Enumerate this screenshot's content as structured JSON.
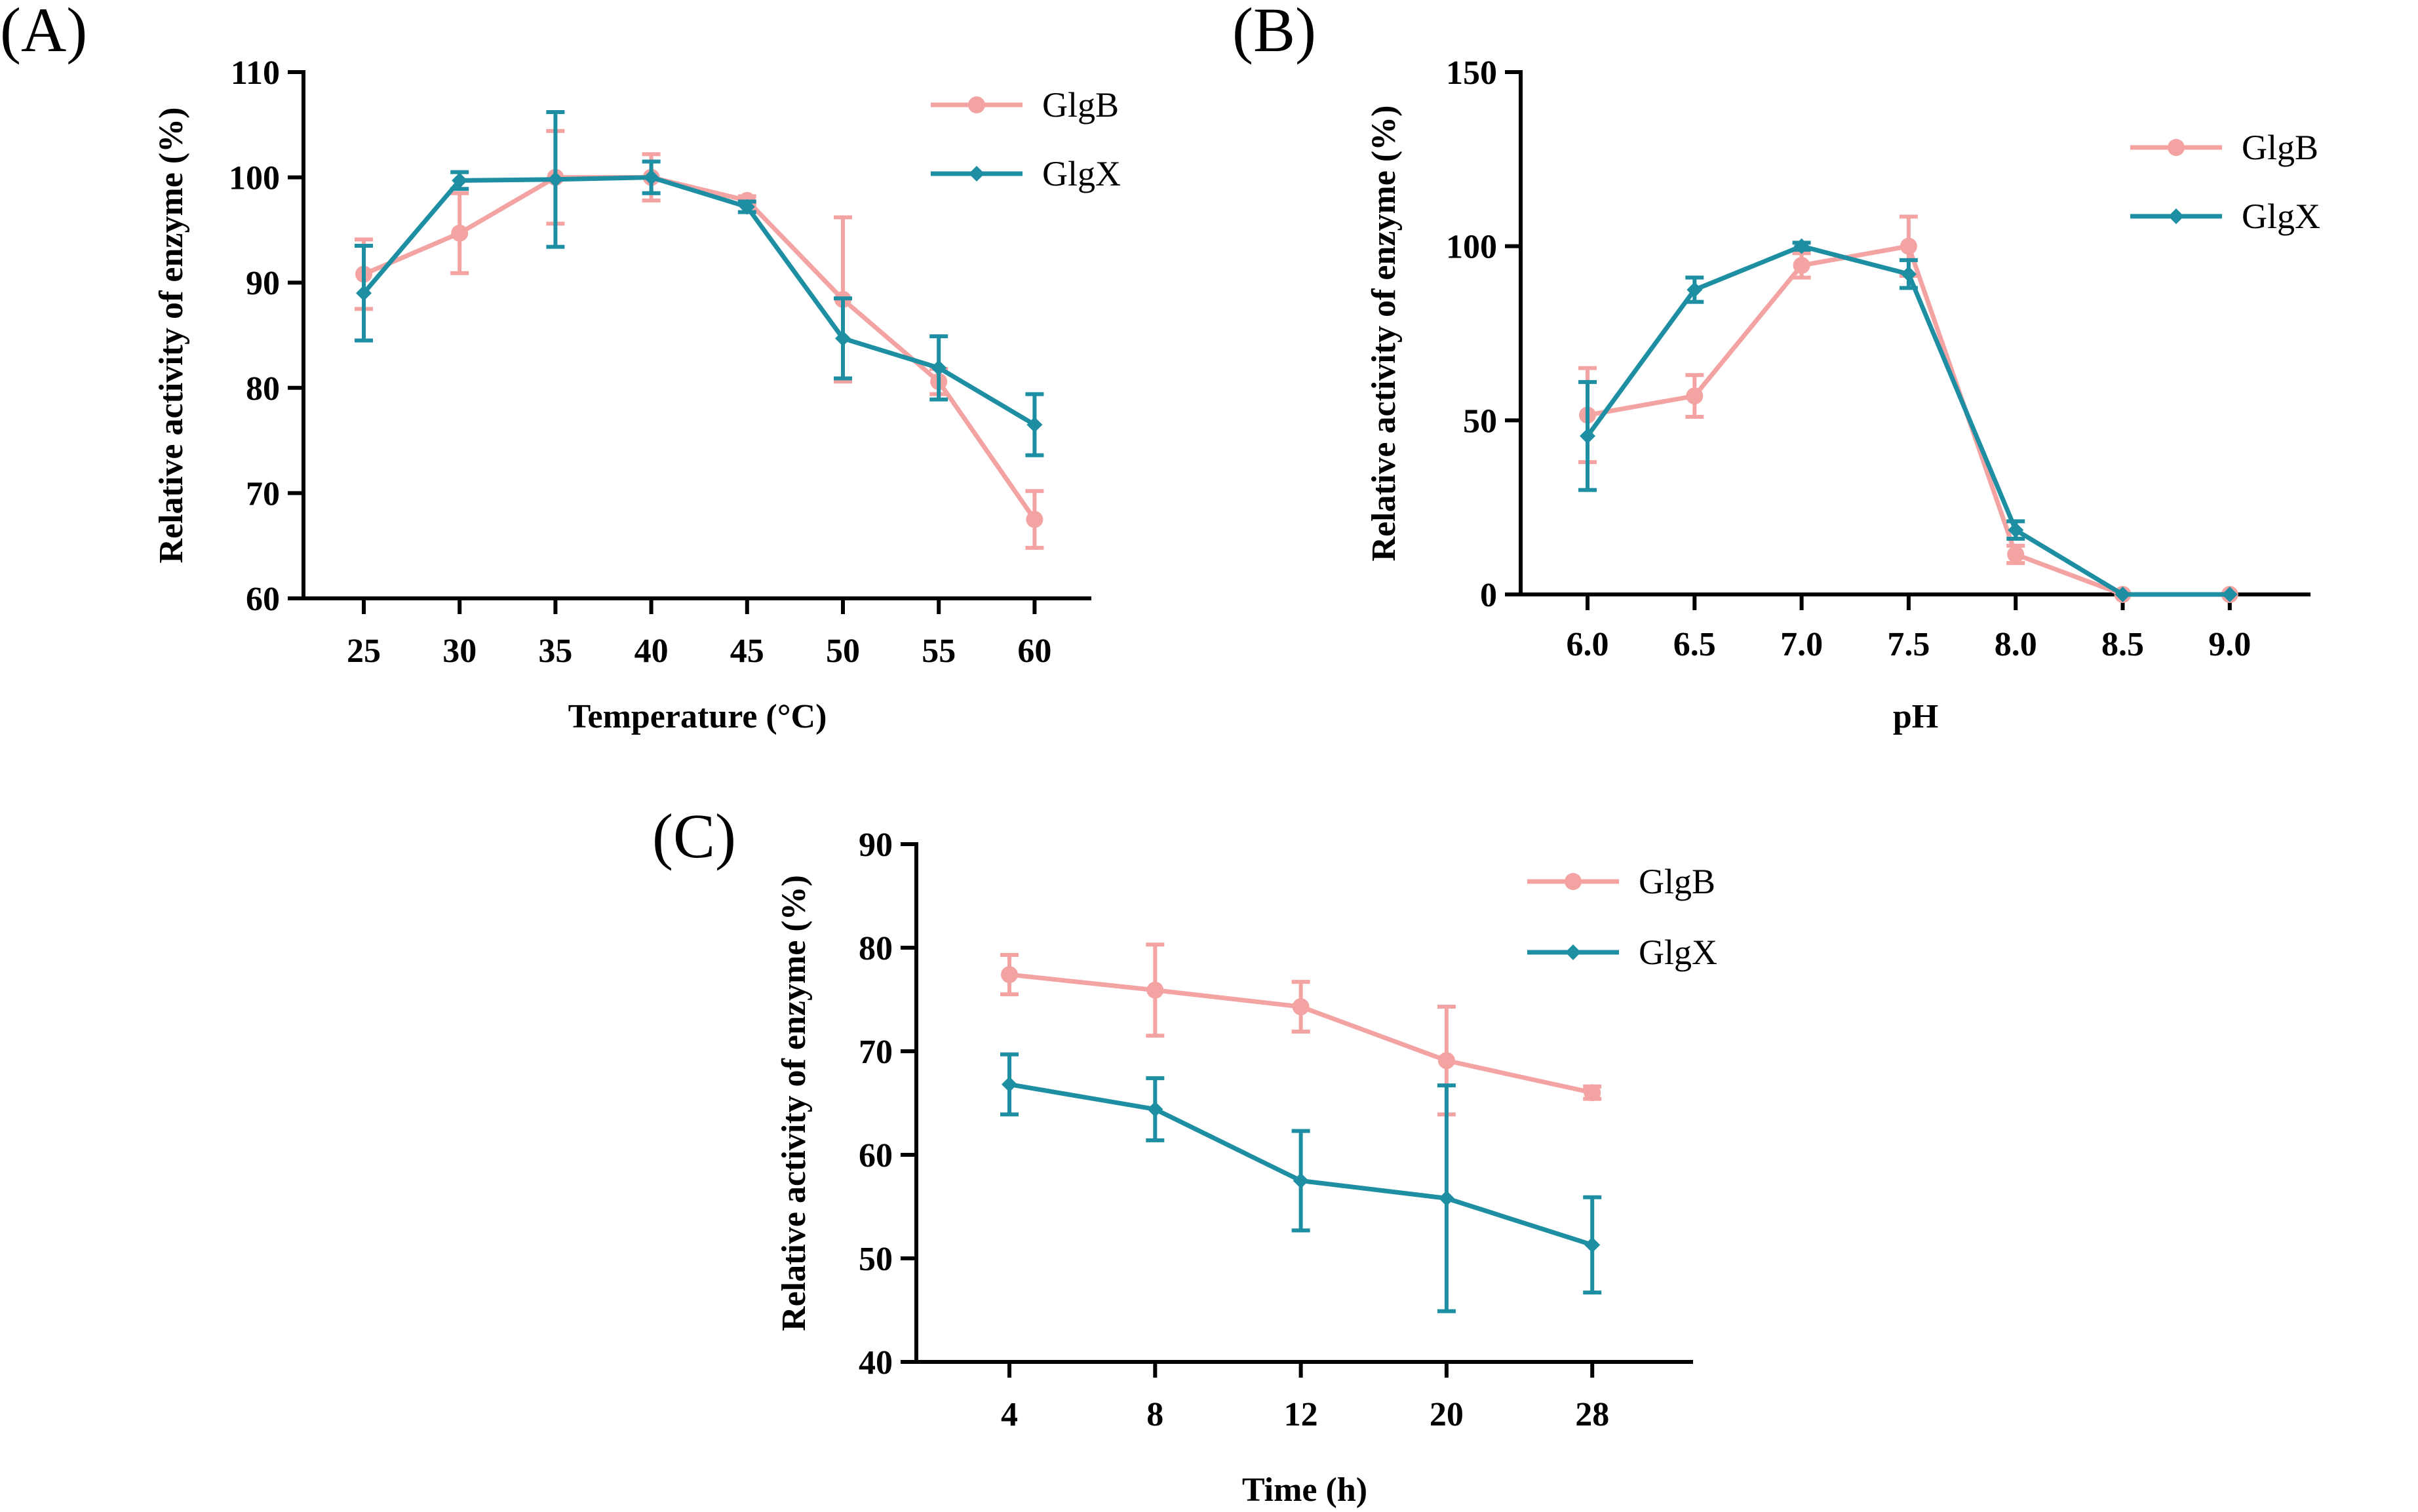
{
  "chart_data": [
    {
      "panel": "(A)",
      "type": "line",
      "xlabel": "Temperature (°C)",
      "ylabel": "Relative activity of enzyme (%)",
      "ylim": [
        60,
        110
      ],
      "yticks": [
        60,
        70,
        80,
        90,
        100,
        110
      ],
      "categories": [
        "25",
        "30",
        "35",
        "40",
        "45",
        "50",
        "55",
        "60"
      ],
      "legend_position": "top-right",
      "series": [
        {
          "name": "GlgB",
          "color": "#F4A3A3",
          "marker": "circle",
          "values": [
            90.8,
            94.7,
            100,
            100,
            97.8,
            88.4,
            80.6,
            67.5
          ],
          "errors": [
            3.3,
            3.8,
            4.4,
            2.2,
            0.4,
            7.8,
            1.2,
            2.7
          ]
        },
        {
          "name": "GlgX",
          "color": "#1E8FA3",
          "marker": "diamond",
          "values": [
            89.0,
            99.7,
            99.8,
            100,
            97.2,
            84.7,
            81.9,
            76.5
          ],
          "errors": [
            4.5,
            0.8,
            6.4,
            1.5,
            0.5,
            3.8,
            3.0,
            2.9
          ]
        }
      ]
    },
    {
      "panel": "(B)",
      "type": "line",
      "xlabel": "pH",
      "ylabel": "Relative activity of enzyme (%)",
      "ylim": [
        0,
        150
      ],
      "yticks": [
        0,
        50,
        100,
        150
      ],
      "categories": [
        "6.0",
        "6.5",
        "7.0",
        "7.5",
        "8.0",
        "8.5",
        "9.0"
      ],
      "legend_position": "top-right",
      "series": [
        {
          "name": "GlgB",
          "color": "#F4A3A3",
          "marker": "circle",
          "values": [
            51.5,
            57.0,
            94.5,
            100,
            11.5,
            0,
            0
          ],
          "errors": [
            13.5,
            6.0,
            3.5,
            8.5,
            2.5,
            0,
            0
          ]
        },
        {
          "name": "GlgX",
          "color": "#1E8FA3",
          "marker": "diamond",
          "values": [
            45.5,
            87.5,
            100,
            92.0,
            18.5,
            0,
            0
          ],
          "errors": [
            15.5,
            3.5,
            1.0,
            4.0,
            2.5,
            0,
            0
          ]
        }
      ]
    },
    {
      "panel": "(C)",
      "type": "line",
      "xlabel": "Time (h)",
      "ylabel": "Relative activity of enzyme (%)",
      "ylim": [
        40,
        90
      ],
      "yticks": [
        40,
        50,
        60,
        70,
        80,
        90
      ],
      "categories": [
        "4",
        "8",
        "12",
        "20",
        "28"
      ],
      "legend_position": "top-right",
      "series": [
        {
          "name": "GlgB",
          "color": "#F4A3A3",
          "marker": "circle",
          "values": [
            77.4,
            75.9,
            74.3,
            69.1,
            66.0
          ],
          "errors": [
            1.9,
            4.4,
            2.4,
            5.2,
            0.6
          ]
        },
        {
          "name": "GlgX",
          "color": "#1E8FA3",
          "marker": "diamond",
          "values": [
            66.8,
            64.4,
            57.5,
            55.8,
            51.3
          ],
          "errors": [
            2.9,
            3.0,
            4.8,
            10.9,
            4.6
          ]
        }
      ]
    }
  ]
}
